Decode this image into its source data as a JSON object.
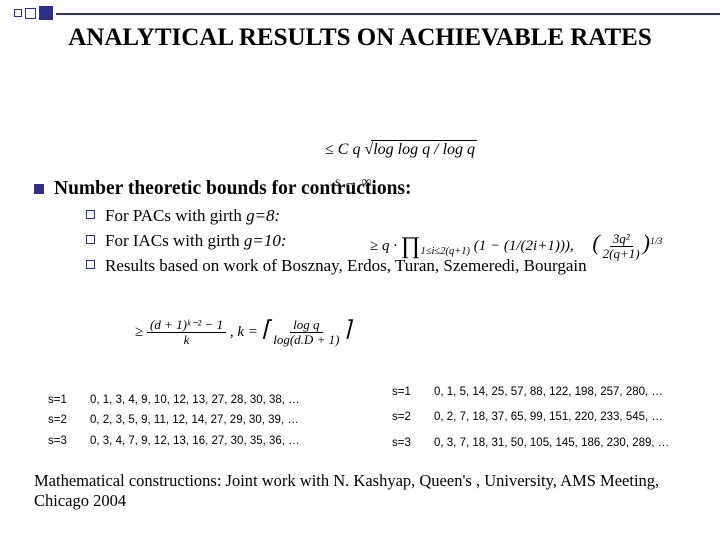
{
  "title": "ANALYTICAL RESULTS ON ACHIEVABLE RATES",
  "main_bullet": "Number theoretic bounds for contructions:",
  "sub_items": [
    {
      "prefix": "For PACs with girth ",
      "ital": "g=8:"
    },
    {
      "prefix": "For IACs with girth ",
      "ital": "g=10:"
    },
    {
      "prefix": "Results based on work of Bosznay, Erdos, Turan, Szemeredi, Bourgain",
      "ital": ""
    }
  ],
  "formula_top": "≤ C q √(log log q / log q)",
  "formula_sinf": "s → ∞",
  "formula_prod_left": "≥ q ·",
  "formula_prod_mid": "∏",
  "formula_prod_sub": "1≤i≤2(q+1)",
  "formula_prod_body": "(1 − (1/(2i+1))),",
  "formula_frac_right_num": "3q²",
  "formula_frac_right_den": "2(q+1)",
  "formula_frac_right_exp": "1/3",
  "formula_bottom_left": "≥",
  "formula_bottom_frac_num": "(d + 1)ᵏ⁻² − 1",
  "formula_bottom_frac_den": "k",
  "formula_bottom_mid": ",   k =",
  "formula_bottom_right_num": "log q",
  "formula_bottom_right_den": "log(d.D + 1)",
  "seq_left": [
    {
      "k": "s=1",
      "v": "0, 1, 3, 4, 9, 10, 12, 13, 27, 28, 30, 38, …"
    },
    {
      "k": "s=2",
      "v": "0, 2, 3, 5, 9, 11, 12, 14, 27, 29, 30, 39, …"
    },
    {
      "k": "s=3",
      "v": "0, 3, 4, 7, 9, 12, 13, 16, 27, 30, 35, 36, …"
    }
  ],
  "seq_right": [
    {
      "k": "s=1",
      "v": "0, 1, 5, 14, 25, 57, 88, 122, 198, 257, 280, …"
    },
    {
      "k": "s=2",
      "v": "0, 2, 7, 18, 37, 65, 99, 151, 220, 233, 545, …"
    },
    {
      "k": "s=3",
      "v": "0, 3, 7, 18, 31, 50, 105, 145, 186, 230, 289, …"
    }
  ],
  "footer": "Mathematical constructions: Joint work with N. Kashyap, Queen's , University, AMS Meeting, Chicago 2004",
  "colors": {
    "accent": "#2e2f88",
    "text": "#000000",
    "bg": "#ffffff"
  },
  "typography": {
    "title_pt": 25,
    "body_pt": 19,
    "sub_pt": 17,
    "seq_pt": 11.5,
    "footer_pt": 16.5
  }
}
